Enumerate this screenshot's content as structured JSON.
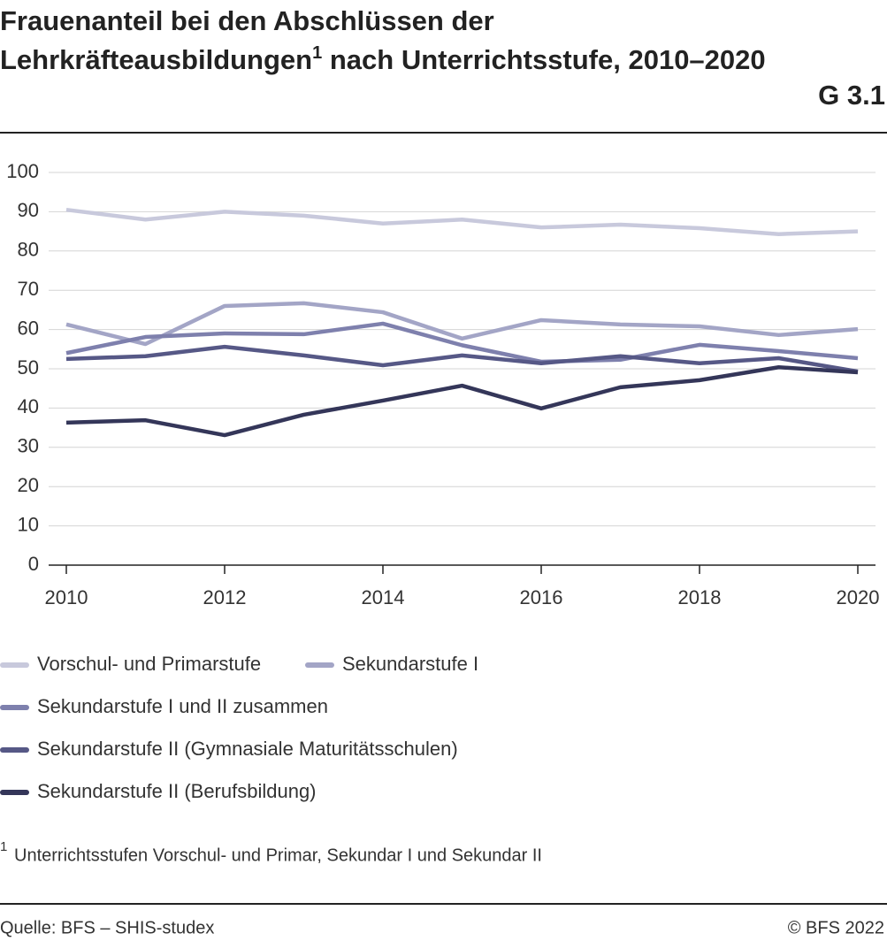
{
  "chart_data": {
    "type": "line",
    "title": "Frauenanteil bei den Abschlüssen der Lehrkräfteausbildungen",
    "title_footnote_marker": "1",
    "title_continued": " nach Unterrichtsstufe, 2010–2020",
    "chart_id": "G 3.1",
    "x": [
      2010,
      2011,
      2012,
      2013,
      2014,
      2015,
      2016,
      2017,
      2018,
      2019,
      2020
    ],
    "xlim": [
      2010,
      2020
    ],
    "xticks": [
      2010,
      2012,
      2014,
      2016,
      2018,
      2020
    ],
    "ylim": [
      0,
      100
    ],
    "yticks": [
      0,
      10,
      20,
      30,
      40,
      50,
      60,
      70,
      80,
      90,
      100
    ],
    "grid": true,
    "series": [
      {
        "name": "Vorschul- und Primarstufe",
        "color": "#c8c9dc",
        "values": [
          90.5,
          88,
          90,
          89,
          87,
          88,
          86,
          86.7,
          85.8,
          84.3,
          85
        ]
      },
      {
        "name": "Sekundarstufe I",
        "color": "#a3a5c6",
        "values": [
          61.3,
          56.3,
          66,
          66.7,
          64.4,
          57.7,
          62.4,
          61.3,
          60.8,
          58.6,
          60.1
        ]
      },
      {
        "name": "Sekundarstufe I und II zusammen",
        "color": "#7e80ad",
        "values": [
          54,
          58.1,
          59,
          58.8,
          61.5,
          56,
          51.8,
          52.3,
          56.1,
          54.5,
          52.7
        ]
      },
      {
        "name": "Sekundarstufe II (Gymnasiale Maturitätsschulen)",
        "color": "#565886",
        "values": [
          52.5,
          53.2,
          55.6,
          53.4,
          50.9,
          53.4,
          51.4,
          53.2,
          51.4,
          52.7,
          49.3
        ]
      },
      {
        "name": "Sekundarstufe II (Berufsbildung)",
        "color": "#343659",
        "values": [
          36.3,
          36.9,
          33.1,
          38.3,
          41.9,
          45.7,
          39.9,
          45.3,
          47.1,
          50.4,
          49.1
        ]
      }
    ],
    "footnote_marker": "1",
    "footnote": "Unterrichtsstufen Vorschul- und Primar, Sekundar I und Sekundar II",
    "source": "Quelle: BFS – SHIS-studex",
    "copyright": "© BFS 2022"
  }
}
